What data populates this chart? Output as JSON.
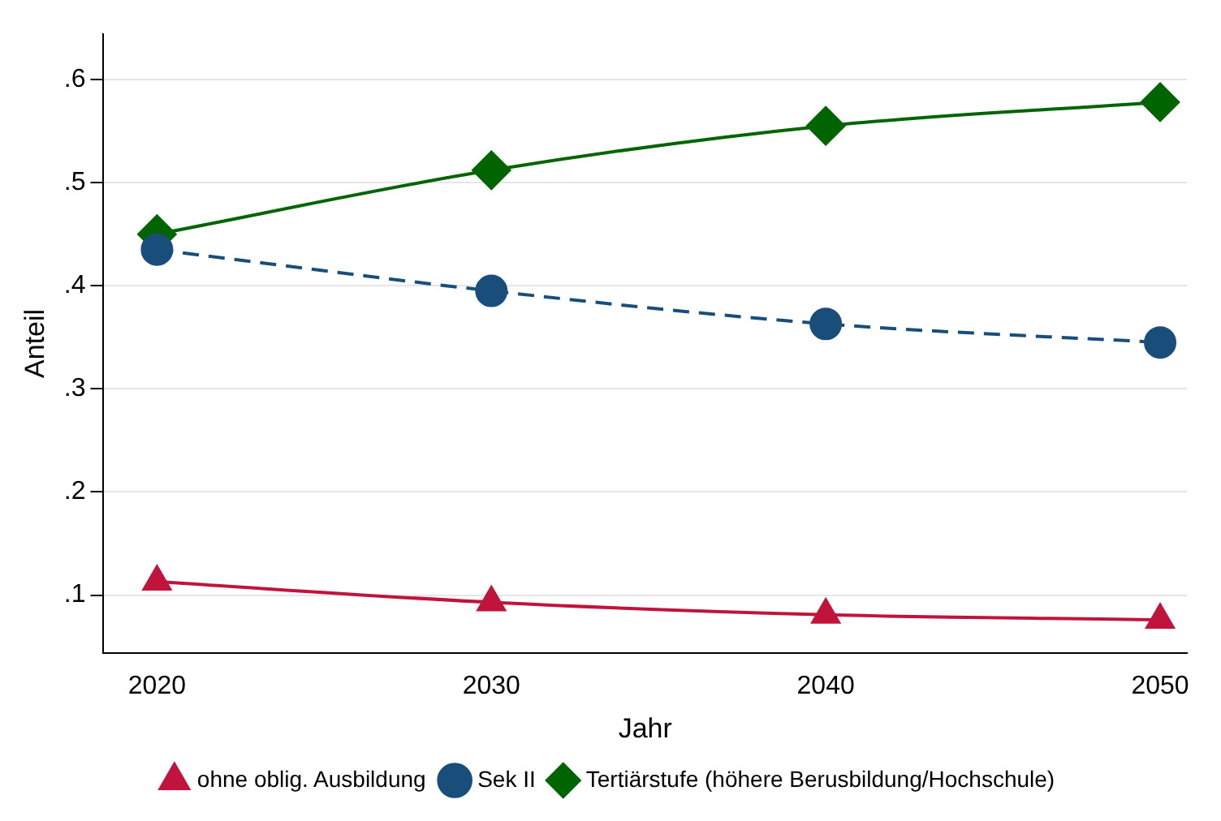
{
  "chart_data": {
    "type": "line",
    "xlabel": "Jahr",
    "ylabel": "Anteil",
    "x": [
      2020,
      2030,
      2040,
      2050
    ],
    "xlim": [
      2018.4,
      2050.8
    ],
    "xticks": [
      2020,
      2030,
      2040,
      2050
    ],
    "ylim": [
      0.044,
      0.644
    ],
    "yticks": [
      {
        "value": 0.1,
        "label": ".1"
      },
      {
        "value": 0.2,
        "label": ".2"
      },
      {
        "value": 0.3,
        "label": ".3"
      },
      {
        "value": 0.4,
        "label": ".4"
      },
      {
        "value": 0.5,
        "label": ".5"
      },
      {
        "value": 0.6,
        "label": ".6"
      }
    ],
    "grid": "y",
    "legend": "bottom",
    "series": [
      {
        "name": "ohne oblig. Ausbildung",
        "color": "#c0143c",
        "marker": "triangle",
        "line_style": "solid",
        "values": [
          0.113,
          0.093,
          0.081,
          0.076
        ]
      },
      {
        "name": "Sek II",
        "color": "#1a4e7a",
        "marker": "circle",
        "line_style": "dashed",
        "values": [
          0.435,
          0.395,
          0.363,
          0.345
        ]
      },
      {
        "name": "Tertiärstufe (höhere Berusbildung/Hochschule)",
        "color": "#006400",
        "marker": "diamond",
        "line_style": "solid",
        "values": [
          0.45,
          0.512,
          0.555,
          0.578
        ]
      }
    ]
  }
}
